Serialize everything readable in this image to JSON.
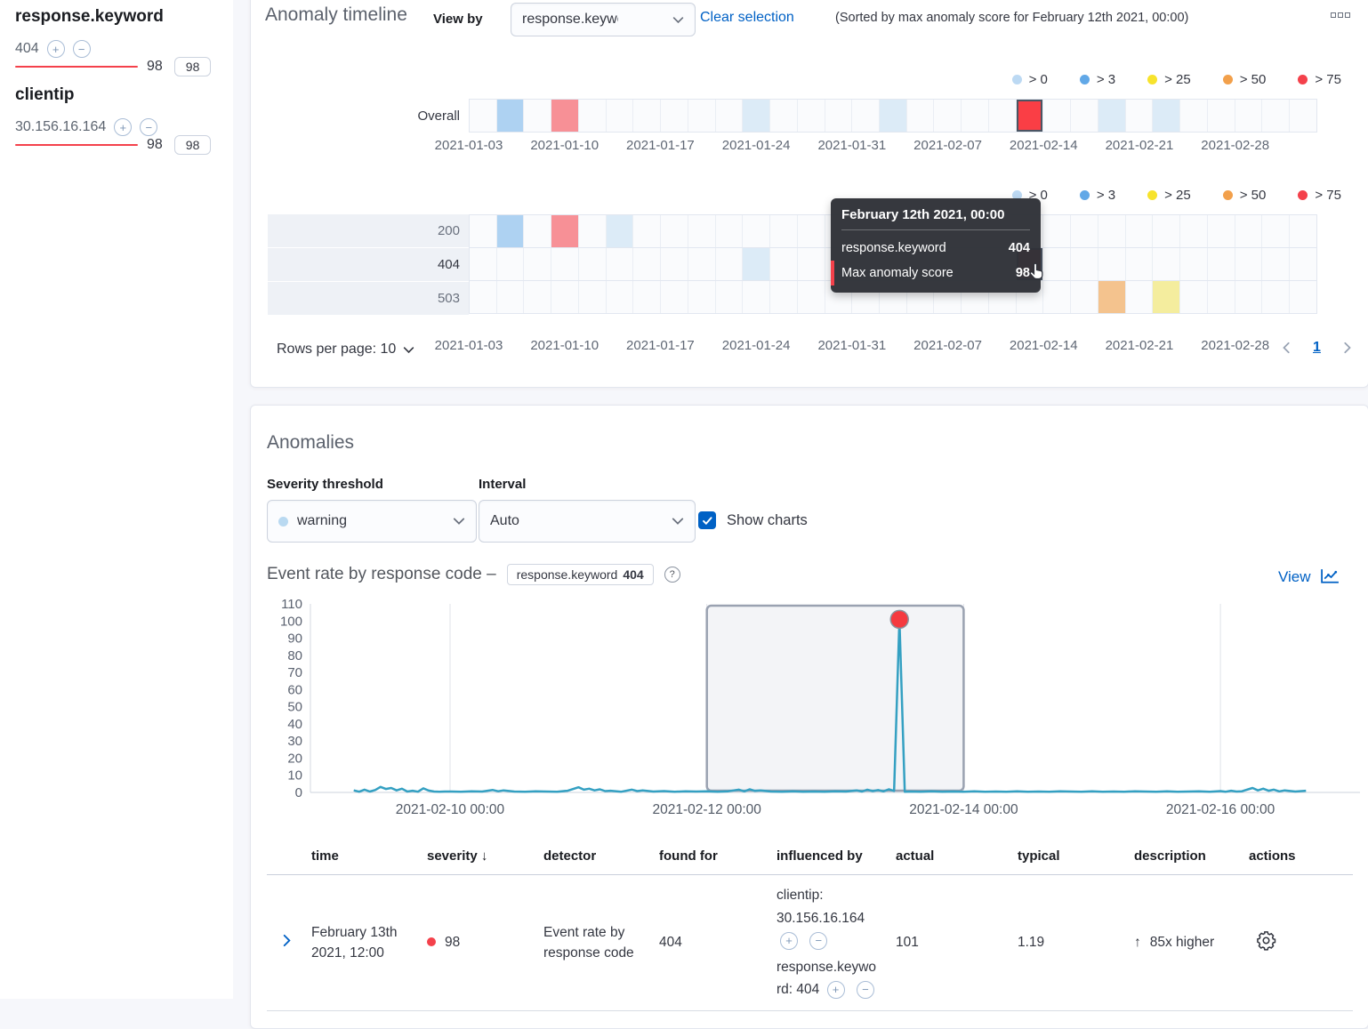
{
  "influencers": {
    "groups": [
      {
        "field": "response.keyword",
        "items": [
          {
            "name": "404",
            "score": "98",
            "badge": "98"
          }
        ]
      },
      {
        "field": "clientip",
        "items": [
          {
            "name": "30.156.16.164",
            "score": "98",
            "badge": "98"
          }
        ]
      }
    ]
  },
  "timeline": {
    "title": "Anomaly timeline",
    "view_by_label": "View by",
    "view_by_value": "response.keyword",
    "clear_selection_label": "Clear selection",
    "sorted_note": "(Sorted by max anomaly score for February 12th 2021, 00:00)",
    "legend": [
      {
        "label": "> 0",
        "color": "#bcd9f3"
      },
      {
        "label": "> 3",
        "color": "#61a8e7"
      },
      {
        "label": "> 25",
        "color": "#f7e32c"
      },
      {
        "label": "> 50",
        "color": "#f2a04b"
      },
      {
        "label": "> 75",
        "color": "#f4414b"
      }
    ],
    "axis_dates": [
      "2021-01-03",
      "2021-01-10",
      "2021-01-17",
      "2021-01-24",
      "2021-01-31",
      "2021-02-07",
      "2021-02-14",
      "2021-02-21",
      "2021-02-28"
    ],
    "overall_label": "Overall",
    "n_cells": 31,
    "cell_colors": {
      "b0": "#dcebf7",
      "b3": "#aed2f2",
      "y25": "#f4ed9e",
      "o50": "#f4c38e",
      "r75": "#f79096",
      "sel": "#fa3e45"
    },
    "overall_cells": [
      {
        "i": 1,
        "k": "b3"
      },
      {
        "i": 3,
        "k": "r75"
      },
      {
        "i": 10,
        "k": "b0"
      },
      {
        "i": 15,
        "k": "b0"
      },
      {
        "i": 20,
        "k": "sel"
      },
      {
        "i": 23,
        "k": "b0"
      },
      {
        "i": 25,
        "k": "b0"
      }
    ],
    "lanes": [
      {
        "label": "200",
        "selected": false,
        "cells": [
          {
            "i": 1,
            "k": "b3"
          },
          {
            "i": 3,
            "k": "r75"
          },
          {
            "i": 5,
            "k": "b0"
          }
        ]
      },
      {
        "label": "404",
        "selected": true,
        "cells": [
          {
            "i": 10,
            "k": "b0"
          },
          {
            "i": 20,
            "k": "sel"
          }
        ]
      },
      {
        "label": "503",
        "selected": false,
        "cells": [
          {
            "i": 23,
            "k": "o50"
          },
          {
            "i": 25,
            "k": "y25"
          }
        ]
      }
    ],
    "tooltip": {
      "header": "February 12th 2021, 00:00",
      "rows": [
        {
          "label": "response.keyword",
          "value": "404"
        },
        {
          "label": "Max anomaly score",
          "value": "98"
        }
      ]
    },
    "rows_per_page_label": "Rows per page: 10",
    "page_current": "1"
  },
  "anomalies": {
    "title": "Anomalies",
    "severity_label": "Severity threshold",
    "severity_value": "warning",
    "severity_dot_color": "#b9d9f1",
    "interval_label": "Interval",
    "interval_value": "Auto",
    "show_charts_label": "Show charts",
    "chart_heading": "Event rate by response code –",
    "chart_badge_field": "response.keyword",
    "chart_badge_value": "404",
    "view_label": "View"
  },
  "chart_data": {
    "type": "line",
    "title": "Event rate by response code",
    "xlabel": "",
    "ylabel": "",
    "ylim": [
      0,
      110
    ],
    "y_ticks": [
      0,
      10,
      20,
      30,
      40,
      50,
      60,
      70,
      80,
      90,
      100,
      110
    ],
    "grid": true,
    "t_unit": "hours since 2021-02-10 00:00",
    "t_domain": [
      -20,
      161
    ],
    "x_ticks": [
      {
        "t": 0,
        "label": "2021-02-10 00:00"
      },
      {
        "t": 48,
        "label": "2021-02-12 00:00"
      },
      {
        "t": 96,
        "label": "2021-02-14 00:00"
      },
      {
        "t": 144,
        "label": "2021-02-16 00:00"
      }
    ],
    "selection": {
      "from": 48,
      "to": 96
    },
    "series": [
      {
        "name": "event rate",
        "color": "#34a0c2",
        "points": [
          [
            -18,
            1.2
          ],
          [
            -17,
            0.4
          ],
          [
            -16,
            1.6
          ],
          [
            -15,
            0.5
          ],
          [
            -14,
            1.4
          ],
          [
            -13,
            3.2
          ],
          [
            -12,
            2.0
          ],
          [
            -11,
            2.6
          ],
          [
            -10,
            1.2
          ],
          [
            -9,
            2.2
          ],
          [
            -8,
            0.5
          ],
          [
            -7,
            1.0
          ],
          [
            -6,
            0.4
          ],
          [
            -5,
            2.4
          ],
          [
            -4,
            1.1
          ],
          [
            -3,
            0.5
          ],
          [
            -2,
            0.4
          ],
          [
            -1,
            0.5
          ],
          [
            0,
            0.5
          ],
          [
            2,
            0.4
          ],
          [
            4,
            0.6
          ],
          [
            6,
            0.5
          ],
          [
            8,
            1.4
          ],
          [
            9,
            0.7
          ],
          [
            10,
            1.2
          ],
          [
            12,
            0.5
          ],
          [
            14,
            0.4
          ],
          [
            16,
            0.6
          ],
          [
            18,
            0.5
          ],
          [
            20,
            0.4
          ],
          [
            22,
            1.0
          ],
          [
            24,
            3.0
          ],
          [
            25,
            1.6
          ],
          [
            26,
            2.2
          ],
          [
            27,
            1.2
          ],
          [
            28,
            1.8
          ],
          [
            29,
            0.8
          ],
          [
            30,
            1.0
          ],
          [
            32,
            0.4
          ],
          [
            34,
            1.6
          ],
          [
            35,
            0.8
          ],
          [
            36,
            1.2
          ],
          [
            38,
            0.5
          ],
          [
            40,
            0.8
          ],
          [
            42,
            0.4
          ],
          [
            44,
            0.6
          ],
          [
            46,
            0.5
          ],
          [
            48,
            0.6
          ],
          [
            50,
            0.4
          ],
          [
            52,
            0.7
          ],
          [
            54,
            1.6
          ],
          [
            55,
            0.6
          ],
          [
            56,
            1.8
          ],
          [
            57,
            0.9
          ],
          [
            58,
            1.2
          ],
          [
            60,
            0.5
          ],
          [
            62,
            0.4
          ],
          [
            64,
            0.6
          ],
          [
            66,
            0.4
          ],
          [
            68,
            0.5
          ],
          [
            70,
            0.4
          ],
          [
            72,
            0.6
          ],
          [
            74,
            0.5
          ],
          [
            76,
            1.2
          ],
          [
            77,
            0.5
          ],
          [
            78,
            1.6
          ],
          [
            79,
            0.8
          ],
          [
            80,
            1.4
          ],
          [
            81,
            0.6
          ],
          [
            82,
            1.8
          ],
          [
            83,
            0.9
          ],
          [
            84,
            101
          ],
          [
            85,
            0.4
          ],
          [
            86,
            0.5
          ],
          [
            88,
            0.4
          ],
          [
            90,
            0.6
          ],
          [
            92,
            0.4
          ],
          [
            94,
            0.5
          ],
          [
            96,
            0.4
          ],
          [
            98,
            0.6
          ],
          [
            100,
            0.4
          ],
          [
            102,
            0.5
          ],
          [
            104,
            0.4
          ],
          [
            106,
            0.6
          ],
          [
            108,
            0.4
          ],
          [
            110,
            0.5
          ],
          [
            112,
            0.4
          ],
          [
            114,
            0.6
          ],
          [
            116,
            0.5
          ],
          [
            118,
            0.4
          ],
          [
            120,
            0.6
          ],
          [
            122,
            0.4
          ],
          [
            124,
            0.5
          ],
          [
            126,
            0.4
          ],
          [
            128,
            0.7
          ],
          [
            130,
            0.5
          ],
          [
            132,
            0.4
          ],
          [
            134,
            0.6
          ],
          [
            136,
            0.4
          ],
          [
            138,
            0.5
          ],
          [
            140,
            0.6
          ],
          [
            142,
            0.4
          ],
          [
            144,
            0.8
          ],
          [
            145,
            0.4
          ],
          [
            146,
            1.0
          ],
          [
            147,
            0.5
          ],
          [
            148,
            0.7
          ],
          [
            150,
            2.6
          ],
          [
            151,
            1.2
          ],
          [
            152,
            2.2
          ],
          [
            153,
            1.0
          ],
          [
            154,
            1.6
          ],
          [
            155,
            0.6
          ],
          [
            156,
            1.2
          ],
          [
            158,
            0.5
          ],
          [
            160,
            1.0
          ]
        ]
      }
    ],
    "anomaly_point": {
      "t": 84,
      "value": 101,
      "severity_color": "#f5393f",
      "time_label": "February 13th 2021, 12:00"
    }
  },
  "table": {
    "headers": [
      "time",
      "severity",
      "detector",
      "found for",
      "influenced by",
      "actual",
      "typical",
      "description",
      "actions"
    ],
    "sorted_by": "severity",
    "rows": [
      {
        "time": "February 13th 2021, 12:00",
        "severity": "98",
        "detector": "Event rate by response code",
        "found_for": "404",
        "influenced_by": [
          "clientip: 30.156.16.164",
          "response.keyword: 404"
        ],
        "actual": "101",
        "typical": "1.19",
        "description": "85x higher"
      }
    ]
  }
}
